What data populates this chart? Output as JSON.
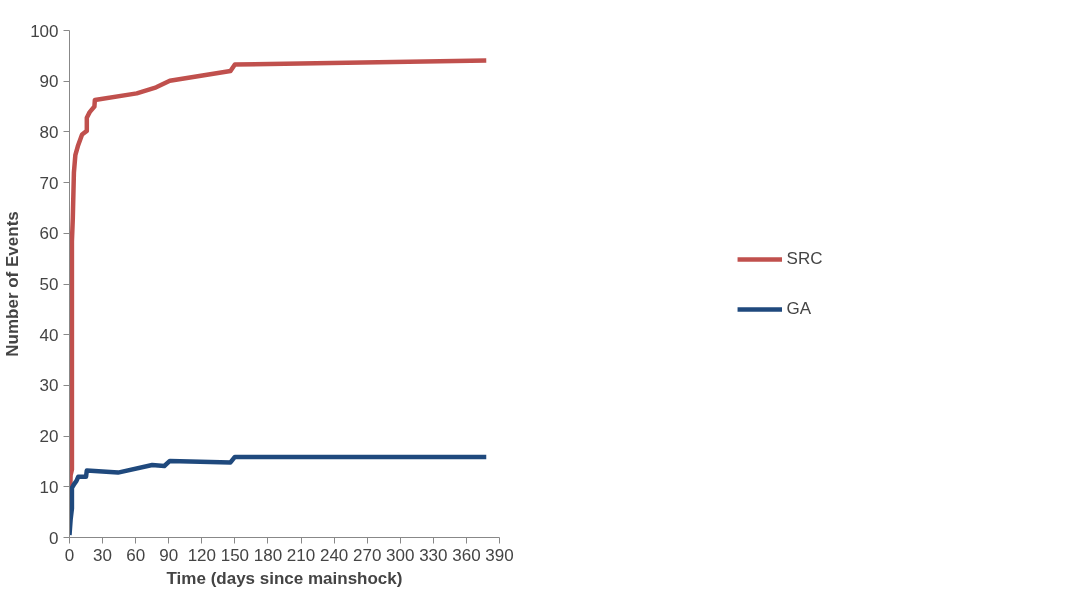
{
  "chart_data": {
    "type": "line",
    "xlabel": "Time (days since mainshock)",
    "ylabel": "Number of Events",
    "xlim": [
      0,
      390
    ],
    "xticks": [
      0,
      30,
      60,
      90,
      120,
      150,
      180,
      210,
      240,
      270,
      300,
      330,
      360,
      390
    ],
    "ylim": [
      0,
      100
    ],
    "yticks": [
      0,
      10,
      20,
      30,
      40,
      50,
      60,
      70,
      80,
      90,
      100
    ],
    "grid": false,
    "legend": "right",
    "marker": "none",
    "line_style": "solid",
    "series": [
      {
        "name": "SRC",
        "color": "#c0504d",
        "x": [
          0,
          1,
          2.2,
          2.2,
          3,
          4,
          5.3,
          7.6,
          11.4,
          15.7,
          15.7,
          18.3,
          22.6,
          23,
          61,
          78.6,
          91,
          146,
          150,
          378
        ],
        "values": [
          3.5,
          12.3,
          13.4,
          58.4,
          63,
          72,
          75.4,
          77.2,
          79.5,
          80.2,
          82.8,
          83.9,
          85,
          86.3,
          87.6,
          88.8,
          90.1,
          92,
          93.3,
          94.1
        ]
      },
      {
        "name": "GA",
        "color": "#1f497d",
        "x": [
          0,
          1,
          2.2,
          2.2,
          4.4,
          6.2,
          8,
          15,
          15.7,
          44,
          75,
          86,
          91,
          146,
          150,
          378
        ],
        "values": [
          0.5,
          3.5,
          5.7,
          9.8,
          10.6,
          11.1,
          12,
          12,
          13.2,
          12.8,
          14.3,
          14.1,
          15.1,
          14.8,
          15.9,
          15.9
        ]
      }
    ]
  }
}
